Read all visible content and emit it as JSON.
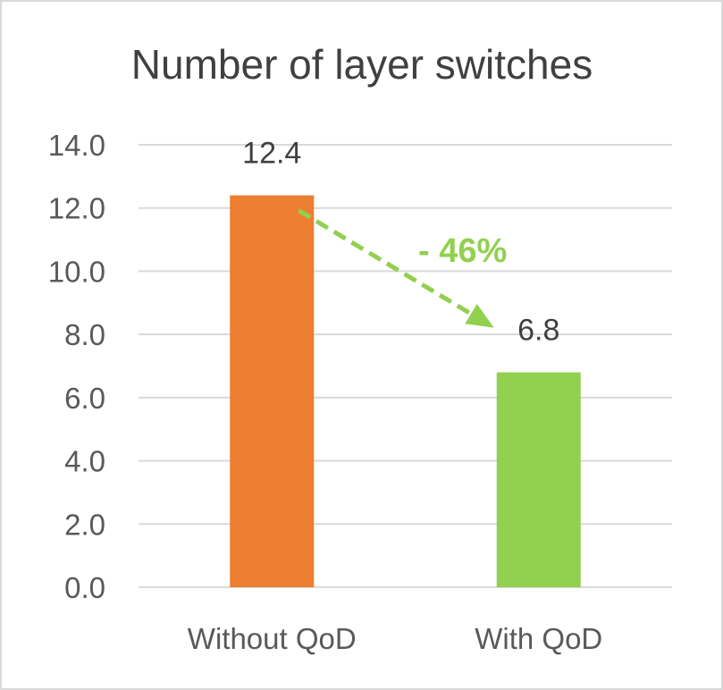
{
  "chart_data": {
    "type": "bar",
    "title": "Number of layer switches",
    "categories": [
      "Without QoD",
      "With QoD"
    ],
    "values": [
      12.4,
      6.8
    ],
    "data_labels": [
      "12.4",
      "6.8"
    ],
    "bar_colors": [
      "#ed7d31",
      "#92d050"
    ],
    "ylim": [
      0,
      14
    ],
    "yticks": [
      "0.0",
      "2.0",
      "4.0",
      "6.0",
      "8.0",
      "10.0",
      "12.0",
      "14.0"
    ],
    "xlabel": "",
    "ylabel": "",
    "grid": true,
    "legend": "none",
    "annotation": {
      "text": "- 46%",
      "color": "#92d050",
      "arrow": "dashed"
    }
  }
}
